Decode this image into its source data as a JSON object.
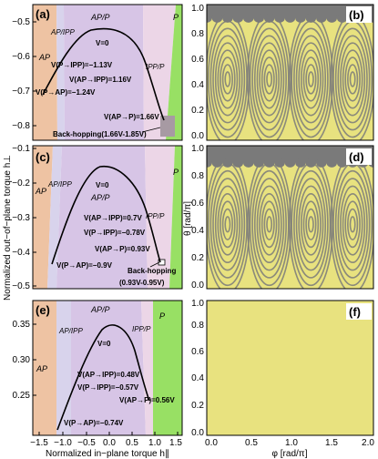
{
  "colors": {
    "AP": "#eec3a3",
    "AP_IPP": "#d8d3ec",
    "AP_P": "#d7c5e6",
    "IPP_P": "#ecd6e7",
    "P": "#98e064",
    "backhop": "#a79aa3",
    "pattern_yellow": "#e8e27f",
    "pattern_gray": "#7a7a7a",
    "frame": "#000000",
    "curve": "#000000"
  },
  "shared": {
    "ylabel_left": "Normalized out−of−plane torque h⊥",
    "xlabel_left": "Normalized in−plane torque h∥",
    "ylabel_right": "θ [rad/π]",
    "xlabel_right": "φ [rad/π]",
    "left_xticks": [
      "−1.5",
      "−1.0",
      "−0.5",
      "0.0",
      "0.5",
      "1.0",
      "1.5"
    ],
    "right_xticks": [
      "0.0",
      "0.5",
      "1.0",
      "1.5",
      "2.0"
    ],
    "right_yticks": [
      "0.0",
      "0.2",
      "0.4",
      "0.6",
      "0.8",
      "1.0"
    ]
  },
  "chart_data": [
    {
      "panel": "(a)",
      "type": "area",
      "xlim": [
        -1.5,
        1.5
      ],
      "ylim": [
        -0.84,
        -0.45
      ],
      "yticks": [
        "−0.5",
        "−0.6",
        "−0.7",
        "−0.8"
      ],
      "regions": [
        "AP",
        "AP/IPP",
        "AP/P",
        "IPP/P",
        "P"
      ],
      "labels": [
        "V=0",
        "V(P→IPP)=−1.13V",
        "V(AP→IPP)=1.16V",
        "V(P→AP)=−1.24V",
        "V(AP→P)=1.66V",
        "Back-hopping(1.66V-1.85V)"
      ],
      "curve": {
        "x": [
          -1.24,
          -1.13,
          -0.6,
          0.0,
          0.6,
          1.16,
          1.66
        ],
        "y": [
          -0.7,
          -0.67,
          -0.56,
          -0.52,
          -0.56,
          -0.68,
          -0.81
        ]
      }
    },
    {
      "panel": "(b)",
      "type": "heatmap",
      "xlim": [
        0,
        2
      ],
      "ylim": [
        0,
        1
      ],
      "gray_band_theta": [
        0.9,
        1.0
      ]
    },
    {
      "panel": "(c)",
      "type": "area",
      "xlim": [
        -1.5,
        1.5
      ],
      "ylim": [
        -0.5,
        -0.1
      ],
      "yticks": [
        "−0.1",
        "−0.2",
        "−0.3",
        "−0.4",
        "−0.5"
      ],
      "regions": [
        "AP",
        "AP/IPP",
        "AP/P",
        "IPP/P",
        "P"
      ],
      "labels": [
        "V=0",
        "V(AP→IPP)=0.7V",
        "V(P→IPP)=−0.78V",
        "V(AP→P)=0.93V",
        "V(P→AP)=−0.9V",
        "Back-hopping",
        "(0.93V-0.95V)"
      ],
      "curve": {
        "x": [
          -0.9,
          -0.78,
          -0.4,
          0.0,
          0.4,
          0.7,
          0.93
        ],
        "y": [
          -0.41,
          -0.36,
          -0.22,
          -0.15,
          -0.22,
          -0.32,
          -0.41
        ]
      }
    },
    {
      "panel": "(d)",
      "type": "heatmap",
      "xlim": [
        0,
        2
      ],
      "ylim": [
        0,
        1
      ],
      "gray_band_theta": [
        0.88,
        1.0
      ]
    },
    {
      "panel": "(e)",
      "type": "area",
      "xlim": [
        -1.5,
        1.5
      ],
      "ylim": [
        0.2,
        0.39
      ],
      "yticks": [
        "0.35",
        "0.30",
        "0.25"
      ],
      "regions": [
        "AP",
        "AP/IPP",
        "AP/P",
        "IPP/P",
        "P"
      ],
      "labels": [
        "V=0",
        "V(AP→IPP)=0.48V",
        "V(P→IPP)=−0.57V",
        "V(AP→P)=0.56V",
        "V(P→AP)=−0.74V"
      ],
      "curve": {
        "x": [
          -0.74,
          -0.57,
          -0.3,
          0.0,
          0.3,
          0.48,
          0.56
        ],
        "y": [
          0.21,
          0.26,
          0.33,
          0.365,
          0.33,
          0.29,
          0.26
        ]
      }
    },
    {
      "panel": "(f)",
      "type": "heatmap",
      "xlim": [
        0,
        2
      ],
      "ylim": [
        0,
        1
      ],
      "gray_band_theta": []
    }
  ]
}
